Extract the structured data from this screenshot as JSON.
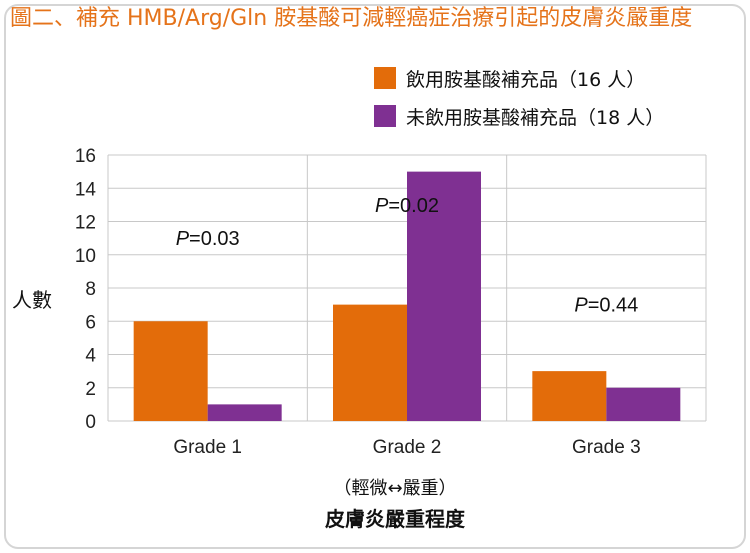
{
  "chart_data": {
    "type": "bar",
    "title": "圖二、補充 HMB/Arg/Gln 胺基酸可減輕癌症治療引起的皮膚炎嚴重度",
    "categories": [
      "Grade 1",
      "Grade 2",
      "Grade 3"
    ],
    "series": [
      {
        "name": "飲用胺基酸補充品（16 人）",
        "values": [
          6,
          7,
          3
        ],
        "color": "#e36c0a"
      },
      {
        "name": "未飲用胺基酸補充品（18 人）",
        "values": [
          1,
          15,
          2
        ],
        "color": "#7f3092"
      }
    ],
    "p_values": [
      {
        "prefix": "P",
        "text": "=0.03",
        "category": 0,
        "y": 11
      },
      {
        "prefix": "P",
        "text": "=0.02",
        "category": 1,
        "y": 13
      },
      {
        "prefix": "P",
        "text": "=0.44",
        "category": 2,
        "y": 7
      }
    ],
    "ylabel": "人數",
    "xlabel_note": "（輕微↔嚴重）",
    "xlabel": "皮膚炎嚴重程度",
    "ylim": [
      0,
      16
    ],
    "yticks": [
      0,
      2,
      4,
      6,
      8,
      10,
      12,
      14,
      16
    ],
    "grid": true,
    "legend_position": "top-right"
  }
}
